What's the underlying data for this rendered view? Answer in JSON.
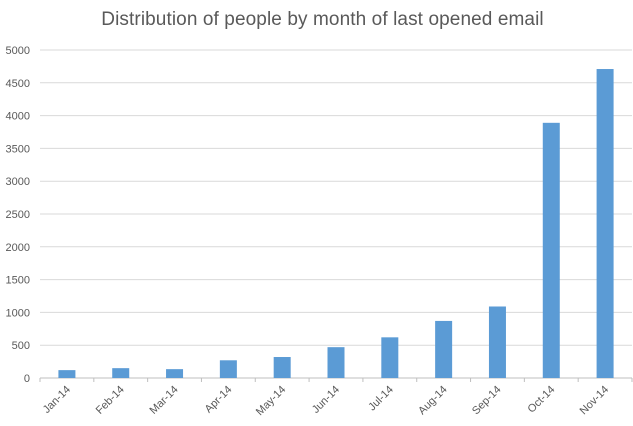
{
  "chart_data": {
    "type": "bar",
    "title": "Distribution of people by month of last opened email",
    "xlabel": "",
    "ylabel": "",
    "categories": [
      "Jan-14",
      "Feb-14",
      "Mar-14",
      "Apr-14",
      "May-14",
      "Jun-14",
      "Jul-14",
      "Aug-14",
      "Sep-14",
      "Oct-14",
      "Nov-14"
    ],
    "values": [
      120,
      150,
      135,
      270,
      320,
      470,
      620,
      870,
      1090,
      3890,
      4710
    ],
    "ylim": [
      0,
      5000
    ],
    "yticks": [
      "0",
      "500",
      "1000",
      "1500",
      "2000",
      "2500",
      "3000",
      "3500",
      "4000",
      "4500",
      "5000"
    ],
    "grid": true,
    "legend": "none",
    "bar_color": "#5b9bd5",
    "grid_color": "#d9d9d9",
    "axis_color": "#bfbfbf",
    "text_color": "#595959"
  }
}
